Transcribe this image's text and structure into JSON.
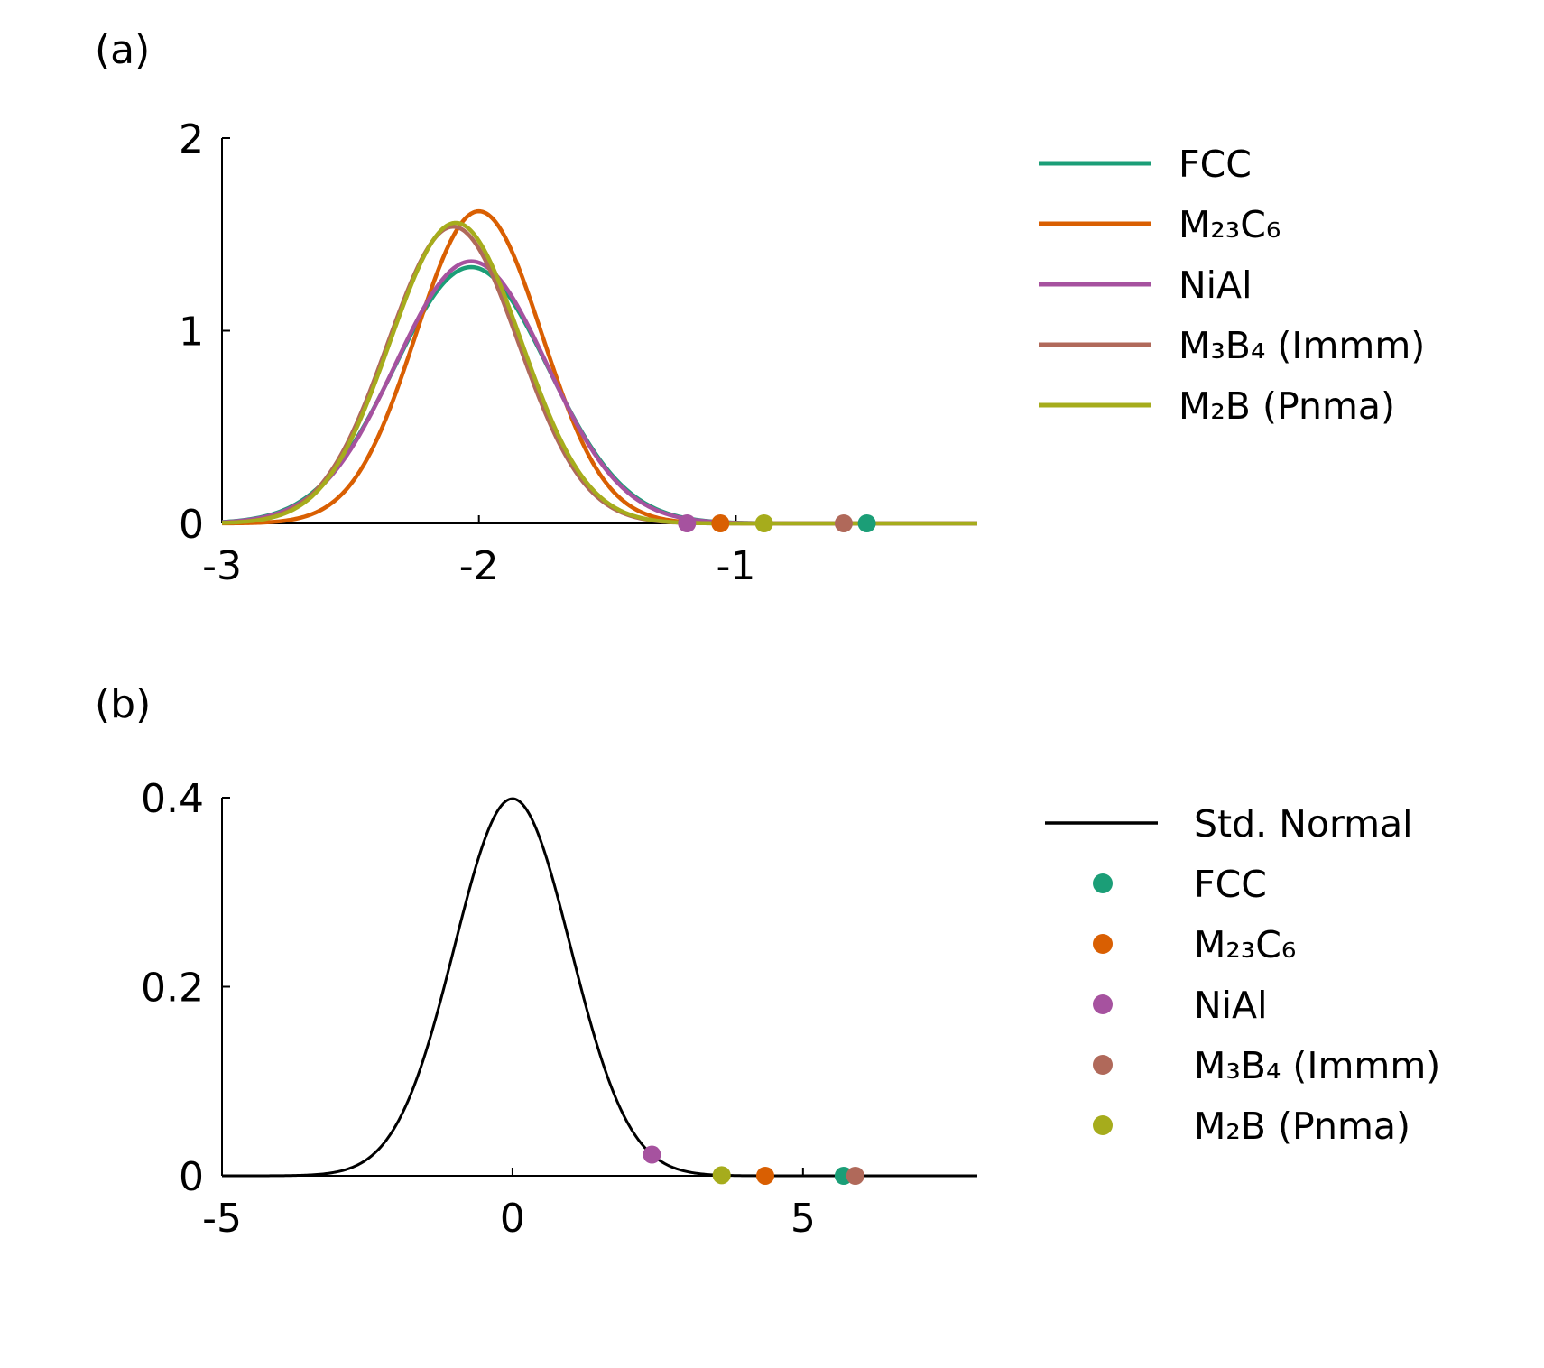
{
  "chart_data": [
    {
      "panel_label": "(a)",
      "type": "line",
      "xlim": [
        -3,
        -0.06
      ],
      "ylim": [
        0,
        2
      ],
      "xticks": [
        -3,
        -2,
        -1
      ],
      "xtick_labels": [
        "-3",
        "-2",
        "-1"
      ],
      "yticks": [
        0,
        1,
        2
      ],
      "ytick_labels": [
        "0",
        "1",
        "2"
      ],
      "grid": false,
      "legend_position": "right",
      "legend_type": "line",
      "series": [
        {
          "name": "FCC",
          "color": "#1b9e77",
          "mu": -2.03,
          "sigma": 0.3,
          "peak": 1.33,
          "marker_x": -0.49
        },
        {
          "name": "M₂₃C₆",
          "color": "#d95f02",
          "mu": -2.0,
          "sigma": 0.245,
          "peak": 1.62,
          "marker_x": -1.06
        },
        {
          "name": "NiAl",
          "color": "#a6529f",
          "mu": -2.03,
          "sigma": 0.295,
          "peak": 1.36,
          "marker_x": -1.19
        },
        {
          "name": "M₃B₄ (Immm)",
          "color": "#b0695a",
          "mu": -2.1,
          "sigma": 0.255,
          "peak": 1.54,
          "marker_x": -0.58
        },
        {
          "name": "M₂B (Pnma)",
          "color": "#a6ac1c",
          "mu": -2.09,
          "sigma": 0.255,
          "peak": 1.56,
          "marker_x": -0.89
        }
      ]
    },
    {
      "panel_label": "(b)",
      "type": "line",
      "xlim": [
        -5,
        8
      ],
      "ylim": [
        0,
        0.4
      ],
      "xticks": [
        -5,
        0,
        5
      ],
      "xtick_labels": [
        "-5",
        "0",
        "5"
      ],
      "yticks": [
        0,
        0.2,
        0.4
      ],
      "ytick_labels": [
        "0",
        "0.2",
        "0.4"
      ],
      "grid": false,
      "legend_position": "right",
      "curve": {
        "name": "Std. Normal",
        "color": "#000000",
        "mu": 0,
        "sigma": 1
      },
      "points": [
        {
          "name": "FCC",
          "color": "#1b9e77",
          "x": 5.7
        },
        {
          "name": "M₂₃C₆",
          "color": "#d95f02",
          "x": 4.35
        },
        {
          "name": "NiAl",
          "color": "#a6529f",
          "x": 2.4
        },
        {
          "name": "M₃B₄ (Immm)",
          "color": "#b0695a",
          "x": 5.9
        },
        {
          "name": "M₂B (Pnma)",
          "color": "#a6ac1c",
          "x": 3.6
        }
      ]
    }
  ]
}
